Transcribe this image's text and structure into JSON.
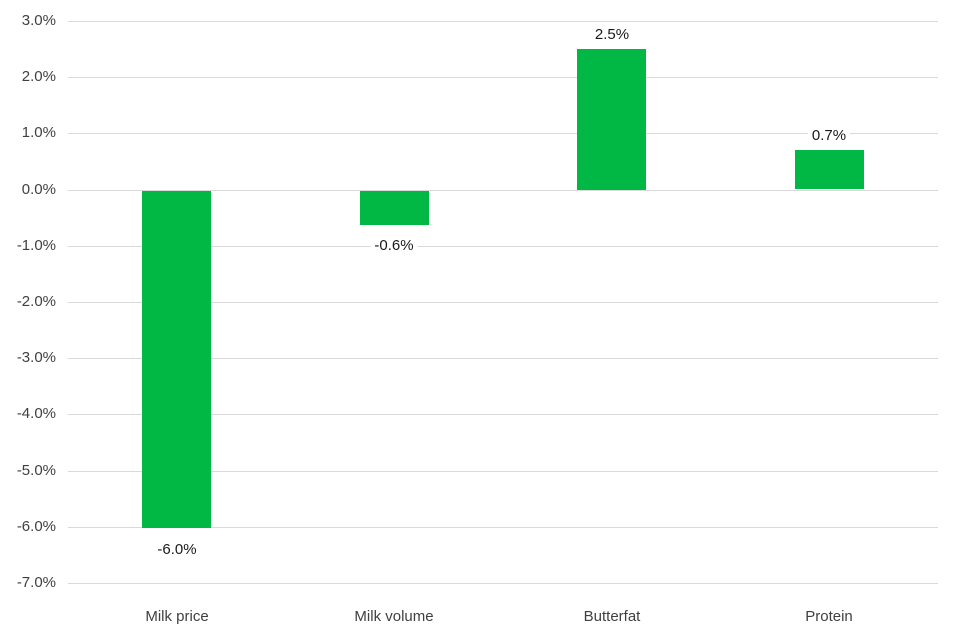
{
  "chart_data": {
    "type": "bar",
    "title": "",
    "xlabel": "",
    "ylabel": "",
    "categories": [
      "Milk price",
      "Milk volume",
      "Butterfat",
      "Protein"
    ],
    "values": [
      -6.0,
      -0.6,
      2.5,
      0.7
    ],
    "value_labels": [
      "-6.0%",
      "-0.6%",
      "2.5%",
      "0.7%"
    ],
    "ylim": [
      -7,
      3
    ],
    "ytick_step": 1,
    "ytick_values": [
      3,
      2,
      1,
      0,
      -1,
      -2,
      -3,
      -4,
      -5,
      -6,
      -7
    ],
    "ytick_labels": [
      "3.0%",
      "2.0%",
      "1.0%",
      "0.0%",
      "-1.0%",
      "-2.0%",
      "-3.0%",
      "-4.0%",
      "-5.0%",
      "-6.0%",
      "-7.0%"
    ],
    "grid": true,
    "legend": false,
    "colors": {
      "bar": "#00B843",
      "gridline": "#D9D9D9",
      "axis_text": "#404040",
      "value_text": "#1A1A1A",
      "background": "#FFFFFF"
    }
  }
}
